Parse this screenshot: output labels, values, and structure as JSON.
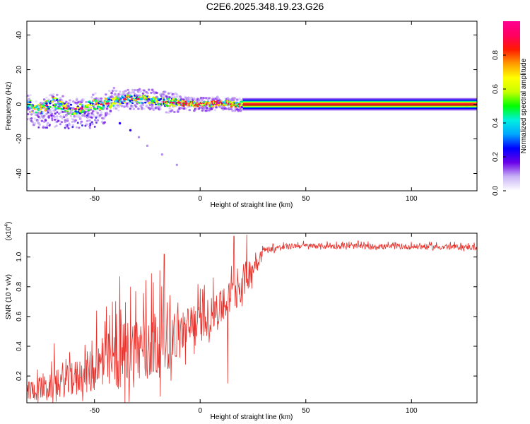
{
  "title": "C2E6.2025.348.19.23.G26",
  "chart_data": [
    {
      "type": "heatmap",
      "xlabel": "Height of straight line (km)",
      "ylabel": "Frequency (Hz)",
      "xlim": [
        -82,
        131
      ],
      "ylim": [
        -50,
        48
      ],
      "xticks": [
        -50,
        0,
        50,
        100
      ],
      "yticks": [
        -40,
        -20,
        0,
        20,
        40
      ],
      "xtick_labels": [
        "-50",
        "0",
        "50",
        "100"
      ],
      "ytick_labels": [
        "-40",
        "-20",
        "0",
        "20",
        "40"
      ],
      "colorbar": {
        "label": "Normalized spectral amplitude",
        "range": [
          0,
          1
        ],
        "ticks": [
          0.0,
          0.2,
          0.4,
          0.6,
          0.8
        ],
        "tick_labels": [
          "0.0",
          "0.2",
          "0.4",
          "0.6",
          "0.8"
        ],
        "stops": [
          "#ffffff",
          "#c9b3f5",
          "#6a00e8",
          "#0000ff",
          "#00a6ff",
          "#00f0e0",
          "#00ff00",
          "#c8ff00",
          "#ffff00",
          "#ff9a00",
          "#ff1a00",
          "#ff0060",
          "#ff0090"
        ]
      },
      "ridge": [
        {
          "x": -80,
          "y": -3
        },
        {
          "x": -75,
          "y": -3
        },
        {
          "x": -72,
          "y": 0
        },
        {
          "x": -70,
          "y": 2
        },
        {
          "x": -65,
          "y": -2
        },
        {
          "x": -60,
          "y": -3
        },
        {
          "x": -55,
          "y": -2
        },
        {
          "x": -50,
          "y": 0
        },
        {
          "x": -45,
          "y": 0
        },
        {
          "x": -40,
          "y": 2
        },
        {
          "x": -35,
          "y": 3
        },
        {
          "x": -30,
          "y": 3
        },
        {
          "x": -25,
          "y": 3
        },
        {
          "x": -20,
          "y": 2
        },
        {
          "x": -15,
          "y": 1
        },
        {
          "x": -10,
          "y": 1
        },
        {
          "x": -5,
          "y": 0
        },
        {
          "x": 0,
          "y": 0
        },
        {
          "x": 5,
          "y": 0
        },
        {
          "x": 10,
          "y": 1
        },
        {
          "x": 15,
          "y": 0
        },
        {
          "x": 20,
          "y": 0
        },
        {
          "x": 131,
          "y": 0
        }
      ],
      "streak": [
        {
          "x": -38,
          "y": -11
        },
        {
          "x": -33,
          "y": -15
        },
        {
          "x": -29,
          "y": -19
        },
        {
          "x": -25,
          "y": -24
        },
        {
          "x": -18,
          "y": -29
        },
        {
          "x": -11,
          "y": -35
        }
      ]
    },
    {
      "type": "line",
      "xlabel": "Height of straight line (km)",
      "ylabel": "SNR (10 * v/v)",
      "multiplier": "(x10",
      "multiplier_exp": "4",
      "multiplier_close": ")",
      "xlim": [
        -82,
        131
      ],
      "ylim": [
        0.02,
        1.16
      ],
      "xticks": [
        -50,
        0,
        50,
        100
      ],
      "yticks": [
        0.2,
        0.4,
        0.6,
        0.8,
        1.0
      ],
      "xtick_labels": [
        "-50",
        "0",
        "50",
        "100"
      ],
      "ytick_labels": [
        "0.2",
        "0.4",
        "0.6",
        "0.8",
        "1.0"
      ],
      "color": "#e8302a",
      "envelope": [
        {
          "x": -82,
          "base": 0.08,
          "amp": 0.15
        },
        {
          "x": -70,
          "base": 0.1,
          "amp": 0.2
        },
        {
          "x": -60,
          "base": 0.15,
          "amp": 0.25
        },
        {
          "x": -50,
          "base": 0.2,
          "amp": 0.35
        },
        {
          "x": -40,
          "base": 0.25,
          "amp": 0.5
        },
        {
          "x": -30,
          "base": 0.3,
          "amp": 0.55
        },
        {
          "x": -20,
          "base": 0.35,
          "amp": 0.55
        },
        {
          "x": -10,
          "base": 0.42,
          "amp": 0.4
        },
        {
          "x": 0,
          "base": 0.52,
          "amp": 0.3
        },
        {
          "x": 10,
          "base": 0.62,
          "amp": 0.25
        },
        {
          "x": 18,
          "base": 0.75,
          "amp": 0.3
        },
        {
          "x": 25,
          "base": 0.9,
          "amp": 0.2
        },
        {
          "x": 30,
          "base": 1.04,
          "amp": 0.05
        },
        {
          "x": 45,
          "base": 1.07,
          "amp": 0.04
        },
        {
          "x": 131,
          "base": 1.06,
          "amp": 0.04
        }
      ],
      "peaks": [
        {
          "x": -69,
          "y": 0.42
        },
        {
          "x": -49,
          "y": 0.64
        },
        {
          "x": -38,
          "y": 0.87
        },
        {
          "x": -33,
          "y": 0.8
        },
        {
          "x": -23,
          "y": 0.89
        },
        {
          "x": -17,
          "y": 1.02
        },
        {
          "x": -12,
          "y": 0.62
        },
        {
          "x": 7,
          "y": 0.7
        },
        {
          "x": 13,
          "y": 0.95
        },
        {
          "x": 16,
          "y": 1.14
        },
        {
          "x": 22,
          "y": 1.15
        }
      ],
      "dips": [
        {
          "x": 13,
          "y": 0.15
        }
      ]
    }
  ]
}
